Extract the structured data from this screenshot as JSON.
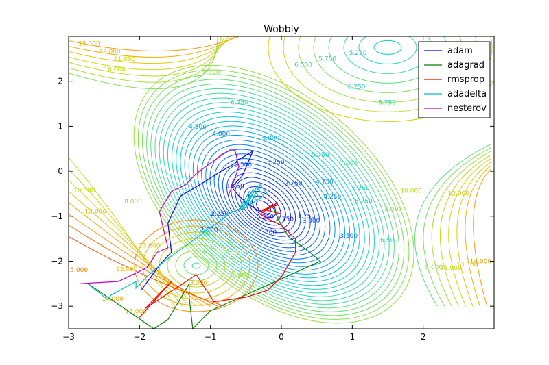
{
  "chart_data": {
    "type": "line",
    "title": "Wobbly",
    "xlabel": "",
    "ylabel": "",
    "xlim": [
      -3,
      3
    ],
    "ylim": [
      -3.5,
      3
    ],
    "x_ticks": [
      -3,
      -2,
      -1,
      0,
      1,
      2
    ],
    "y_ticks": [
      -3,
      -2,
      -1,
      0,
      1,
      2
    ],
    "grid": false,
    "legend_position": "top-right",
    "contour_labels": [
      {
        "text": "13.000",
        "x": -2.71,
        "y": 2.83,
        "color": "#d2c000"
      },
      {
        "text": "12.000",
        "x": -2.42,
        "y": 2.66,
        "color": "#d4cf00"
      },
      {
        "text": "11.000",
        "x": -2.21,
        "y": 2.49,
        "color": "#c8d600"
      },
      {
        "text": "10.000",
        "x": -2.35,
        "y": 2.26,
        "color": "#b7e000"
      },
      {
        "text": "9.000",
        "x": -0.99,
        "y": 2.2,
        "color": "#9ae040"
      },
      {
        "text": "5.250",
        "x": 1.08,
        "y": 2.63,
        "color": "#18c8d8"
      },
      {
        "text": "5.750",
        "x": 0.65,
        "y": 2.5,
        "color": "#1ccfc8"
      },
      {
        "text": "6.500",
        "x": 0.31,
        "y": 2.36,
        "color": "#22d4c0"
      },
      {
        "text": "6.250",
        "x": 1.06,
        "y": 1.87,
        "color": "#20d0c4"
      },
      {
        "text": "6.750",
        "x": -0.59,
        "y": 1.52,
        "color": "#26d6b8"
      },
      {
        "text": "6.750",
        "x": 1.49,
        "y": 1.52,
        "color": "#26d6b8"
      },
      {
        "text": "4.500",
        "x": -1.18,
        "y": 0.98,
        "color": "#1090e8"
      },
      {
        "text": "4.000",
        "x": -0.85,
        "y": 0.82,
        "color": "#0c80ec"
      },
      {
        "text": "5.000",
        "x": -0.15,
        "y": 0.73,
        "color": "#14a8e0"
      },
      {
        "text": "5.750",
        "x": 0.55,
        "y": 0.36,
        "color": "#1ccfc8"
      },
      {
        "text": "7.000",
        "x": 0.95,
        "y": 0.18,
        "color": "#40d8a0"
      },
      {
        "text": "3.500",
        "x": -0.54,
        "y": 0.14,
        "color": "#0a62f0"
      },
      {
        "text": "3.250",
        "x": -0.08,
        "y": 0.2,
        "color": "#0a5af0"
      },
      {
        "text": "2.750",
        "x": 0.17,
        "y": -0.27,
        "color": "#0a48f4"
      },
      {
        "text": "4.750",
        "x": 0.61,
        "y": -0.24,
        "color": "#1298e4"
      },
      {
        "text": "6.250",
        "x": 1.12,
        "y": -0.38,
        "color": "#20d0c4"
      },
      {
        "text": "4.250",
        "x": 0.72,
        "y": -0.57,
        "color": "#0e88e8"
      },
      {
        "text": "5.250",
        "x": 1.16,
        "y": -0.67,
        "color": "#18c8d8"
      },
      {
        "text": "1.250",
        "x": -0.65,
        "y": -0.33,
        "color": "#0810f8"
      },
      {
        "text": "2.250",
        "x": -0.87,
        "y": -0.95,
        "color": "#0a30f4"
      },
      {
        "text": "1.750",
        "x": 0.35,
        "y": -1.0,
        "color": "#0820f8"
      },
      {
        "text": "3.000",
        "x": 0.42,
        "y": -1.1,
        "color": "#0a52f0"
      },
      {
        "text": "3.500",
        "x": 0.95,
        "y": -1.44,
        "color": "#0a62f0"
      },
      {
        "text": "1.500",
        "x": -0.19,
        "y": -1.36,
        "color": "#0818f8"
      },
      {
        "text": "2.000",
        "x": -1.02,
        "y": -1.31,
        "color": "#0a28f4"
      },
      {
        "text": "0.250",
        "x": -0.23,
        "y": -1.02,
        "color": "#0000ff"
      },
      {
        "text": "0.750",
        "x": 0.05,
        "y": -1.07,
        "color": "#0000ff"
      },
      {
        "text": "8.000",
        "x": -2.09,
        "y": -0.68,
        "color": "#8ee048"
      },
      {
        "text": "10.000",
        "x": -2.78,
        "y": -0.43,
        "color": "#b0e000"
      },
      {
        "text": "12.000",
        "x": -2.62,
        "y": -0.9,
        "color": "#d2c800"
      },
      {
        "text": "13.000",
        "x": -1.86,
        "y": -1.66,
        "color": "#d8c400"
      },
      {
        "text": "13.000",
        "x": -2.18,
        "y": -2.18,
        "color": "#d8c400"
      },
      {
        "text": "15.000",
        "x": -2.88,
        "y": -2.2,
        "color": "#f08000"
      },
      {
        "text": "14.000",
        "x": -2.38,
        "y": -2.84,
        "color": "#e8a000"
      },
      {
        "text": "13.000",
        "x": -2.05,
        "y": -3.12,
        "color": "#d8c400"
      },
      {
        "text": "3.000",
        "x": -1.17,
        "y": -2.49,
        "color": "#ffa000"
      },
      {
        "text": "9.000",
        "x": -0.57,
        "y": -2.32,
        "color": "#9ae040"
      },
      {
        "text": "9.000",
        "x": 2.15,
        "y": -2.14,
        "color": "#9ae040"
      },
      {
        "text": "8.000",
        "x": 1.58,
        "y": -0.84,
        "color": "#8ee048"
      },
      {
        "text": "10.000",
        "x": 1.83,
        "y": -0.44,
        "color": "#b0e000"
      },
      {
        "text": "11.000",
        "x": 2.39,
        "y": -2.15,
        "color": "#c8d600"
      },
      {
        "text": "12.000",
        "x": 2.5,
        "y": -0.5,
        "color": "#d2c800"
      },
      {
        "text": "13.000",
        "x": 2.62,
        "y": -2.08,
        "color": "#d8c400"
      },
      {
        "text": "14.000",
        "x": 2.81,
        "y": -2.01,
        "color": "#e8a000"
      },
      {
        "text": "6.500",
        "x": 1.52,
        "y": -1.54,
        "color": "#22d4c0"
      },
      {
        "text": "7.000",
        "x": -1.12,
        "y": -1.4,
        "color": "#40d8a0"
      }
    ],
    "series": [
      {
        "name": "adam",
        "color": "#0000ff",
        "x": [
          -1.98,
          -1.7,
          -1.55,
          -1.6,
          -1.42,
          -1.1,
          -0.85,
          -0.65,
          -0.62,
          -0.5,
          -0.4,
          -0.55,
          -0.7,
          -0.6,
          -0.45,
          -0.35,
          -0.3
        ],
        "y": [
          -2.65,
          -2.05,
          -1.8,
          -1.15,
          -0.55,
          -0.25,
          0.0,
          0.18,
          0.25,
          0.35,
          0.45,
          -0.1,
          -0.35,
          -0.55,
          -0.75,
          -0.85,
          -0.9
        ]
      },
      {
        "name": "adagrad",
        "color": "#008000",
        "x": [
          -2.73,
          -2.4,
          -1.8,
          -1.6,
          -1.3,
          -1.3,
          -1.25,
          -1.0,
          0.55,
          0.4,
          0.1,
          -0.05,
          -0.1,
          -0.15
        ],
        "y": [
          -2.5,
          -2.85,
          -3.5,
          -3.3,
          -2.5,
          -2.8,
          -3.5,
          -3.1,
          -2.0,
          -1.8,
          -1.45,
          -1.05,
          -0.85,
          -0.75
        ]
      },
      {
        "name": "rmsprop",
        "color": "#ff0000",
        "x": [
          -2.0,
          -1.55,
          -1.92,
          -1.2,
          -0.95,
          -0.5,
          -0.2,
          0.0,
          0.2,
          0.2,
          0.0,
          -0.2,
          -0.3,
          -0.05,
          -0.3,
          -0.05,
          -0.25,
          0.0
        ],
        "y": [
          -3.25,
          -2.45,
          -3.05,
          -2.3,
          -2.9,
          -2.8,
          -2.65,
          -2.35,
          -1.8,
          -1.5,
          -1.2,
          -1.05,
          -0.95,
          -0.7,
          -0.9,
          -0.75,
          -0.85,
          -0.95
        ]
      },
      {
        "name": "adadelta",
        "color": "#00bfbf",
        "x": [
          -2.73,
          -2.45,
          -2.4,
          -2.05,
          -2.05,
          -1.9,
          -1.65,
          -1.3,
          -1.05,
          -0.85,
          -0.75,
          -0.6,
          -0.5,
          -0.4,
          -0.6,
          -0.45,
          -0.35,
          -0.55,
          -0.4,
          -0.3,
          -0.5,
          -0.35,
          -0.25,
          -0.45,
          -0.3,
          -0.2
        ],
        "y": [
          -2.5,
          -2.85,
          -2.75,
          -2.45,
          -2.6,
          -2.35,
          -2.0,
          -1.6,
          -1.3,
          -1.1,
          -0.95,
          -0.85,
          -0.75,
          -0.5,
          -0.85,
          -0.45,
          -0.65,
          -0.85,
          -0.4,
          -0.6,
          -0.8,
          -0.35,
          -0.55,
          -0.75,
          -0.3,
          -0.5
        ]
      },
      {
        "name": "nesterov",
        "color": "#bf00bf",
        "x": [
          -2.85,
          -2.3,
          -2.1,
          -1.9,
          -1.75,
          -1.6,
          -1.72,
          -1.55,
          -1.35,
          -1.2,
          -0.85,
          -0.7,
          -0.65,
          -0.6,
          -0.7,
          -0.75
        ],
        "y": [
          -2.5,
          -2.45,
          -2.3,
          -2.15,
          -1.8,
          -1.7,
          -0.9,
          -0.45,
          -0.3,
          -0.05,
          0.35,
          0.5,
          0.45,
          0.1,
          -0.35,
          -0.55
        ]
      }
    ]
  },
  "colors": {
    "axis": "#000000",
    "background": "#ffffff"
  }
}
